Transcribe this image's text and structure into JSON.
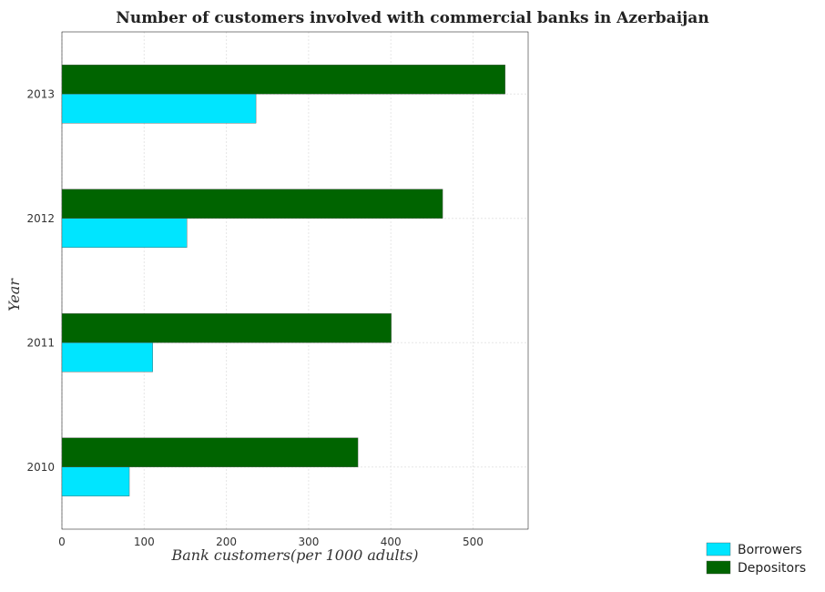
{
  "chart_data": {
    "type": "bar",
    "orientation": "horizontal",
    "title": "Number of customers involved with commercial banks in Azerbaijan",
    "xlabel": "Bank customers(per 1000 adults)",
    "ylabel": "Year",
    "categories": [
      "2010",
      "2011",
      "2012",
      "2013"
    ],
    "series": [
      {
        "name": "Borrowers",
        "values": [
          82,
          110.5,
          152,
          236
        ],
        "color": "#00e5ff"
      },
      {
        "name": "Depositors",
        "values": [
          360,
          400.5,
          463,
          539
        ],
        "color": "#006400"
      }
    ],
    "xlim": [
      0,
      567
    ],
    "xticks": [
      "0",
      "100",
      "200",
      "300",
      "400",
      "500"
    ],
    "grid": true,
    "legend_position": "bottom-right"
  }
}
